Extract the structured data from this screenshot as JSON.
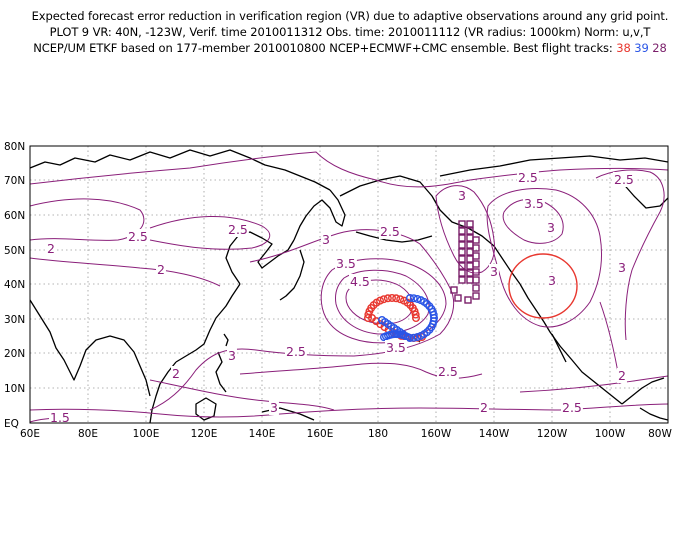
{
  "title": {
    "line1": "Expected forecast error reduction in verification region (VR) due to adaptive observations around any grid point.",
    "line2": "PLOT 9 VR: 40N, -123W, Verif. time 2010011312 Obs. time: 2010011112 (VR radius: 1000km) Norm: u,v,T",
    "line3_prefix": "NCEP/UM ETKF based on 177-member 2010010800 NCEP+ECMWF+CMC ensemble. Best flight tracks:",
    "tracks": [
      {
        "label": "38",
        "color": "#e8372f"
      },
      {
        "label": "39",
        "color": "#2a55e6"
      },
      {
        "label": "28",
        "color": "#7a1f6a"
      }
    ]
  },
  "map": {
    "projection": "cylindrical equidistant",
    "grid": "dotted",
    "lat_labels": [
      "EQ",
      "10N",
      "20N",
      "30N",
      "40N",
      "50N",
      "60N",
      "70N",
      "80N"
    ],
    "lon_labels": [
      "60E",
      "80E",
      "100E",
      "120E",
      "140E",
      "160E",
      "180",
      "160W",
      "140W",
      "120W",
      "100W",
      "80W"
    ],
    "contour_color": "#8a1f7a",
    "contour_labels": [
      "2.5",
      "2.5",
      "2.5",
      "2",
      "2",
      "3",
      "3",
      "3.5",
      "4.5",
      "3",
      "2.5",
      "3",
      "3.5",
      "3",
      "3",
      "3",
      "3.5",
      "2.5",
      "2.5",
      "2",
      "2",
      "2.5",
      "2",
      "1.5",
      "3",
      "2.5"
    ],
    "verification_region": {
      "center": "40N, 123W",
      "radius": "1000km",
      "color": "#e8372f"
    }
  }
}
